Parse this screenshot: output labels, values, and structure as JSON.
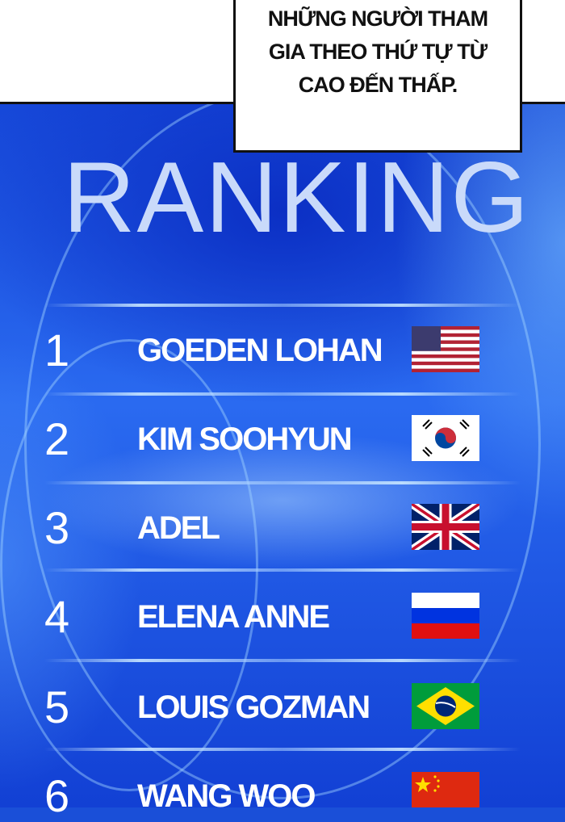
{
  "caption": {
    "lines": [
      "NHỮNG NGƯỜI THAM",
      "GIA THEO THỨ TỰ TỪ",
      "CAO ĐẾN THẤP."
    ]
  },
  "title": "RANKING",
  "rankings": [
    {
      "rank": "1",
      "name": "GOEDEN LOHAN",
      "flag": "usa-flag-icon"
    },
    {
      "rank": "2",
      "name": "KIM SOOHYUN",
      "flag": "south-korea-flag-icon"
    },
    {
      "rank": "3",
      "name": "ADEL",
      "flag": "uk-flag-icon"
    },
    {
      "rank": "4",
      "name": "ELENA ANNE",
      "flag": "russia-flag-icon"
    },
    {
      "rank": "5",
      "name": "LOUIS GOZMAN",
      "flag": "brazil-flag-icon"
    },
    {
      "rank": "6",
      "name": "WANG WOO",
      "flag": "china-flag-icon"
    }
  ],
  "colors": {
    "background": "#1a4fd8",
    "title": "#c9dafa"
  }
}
